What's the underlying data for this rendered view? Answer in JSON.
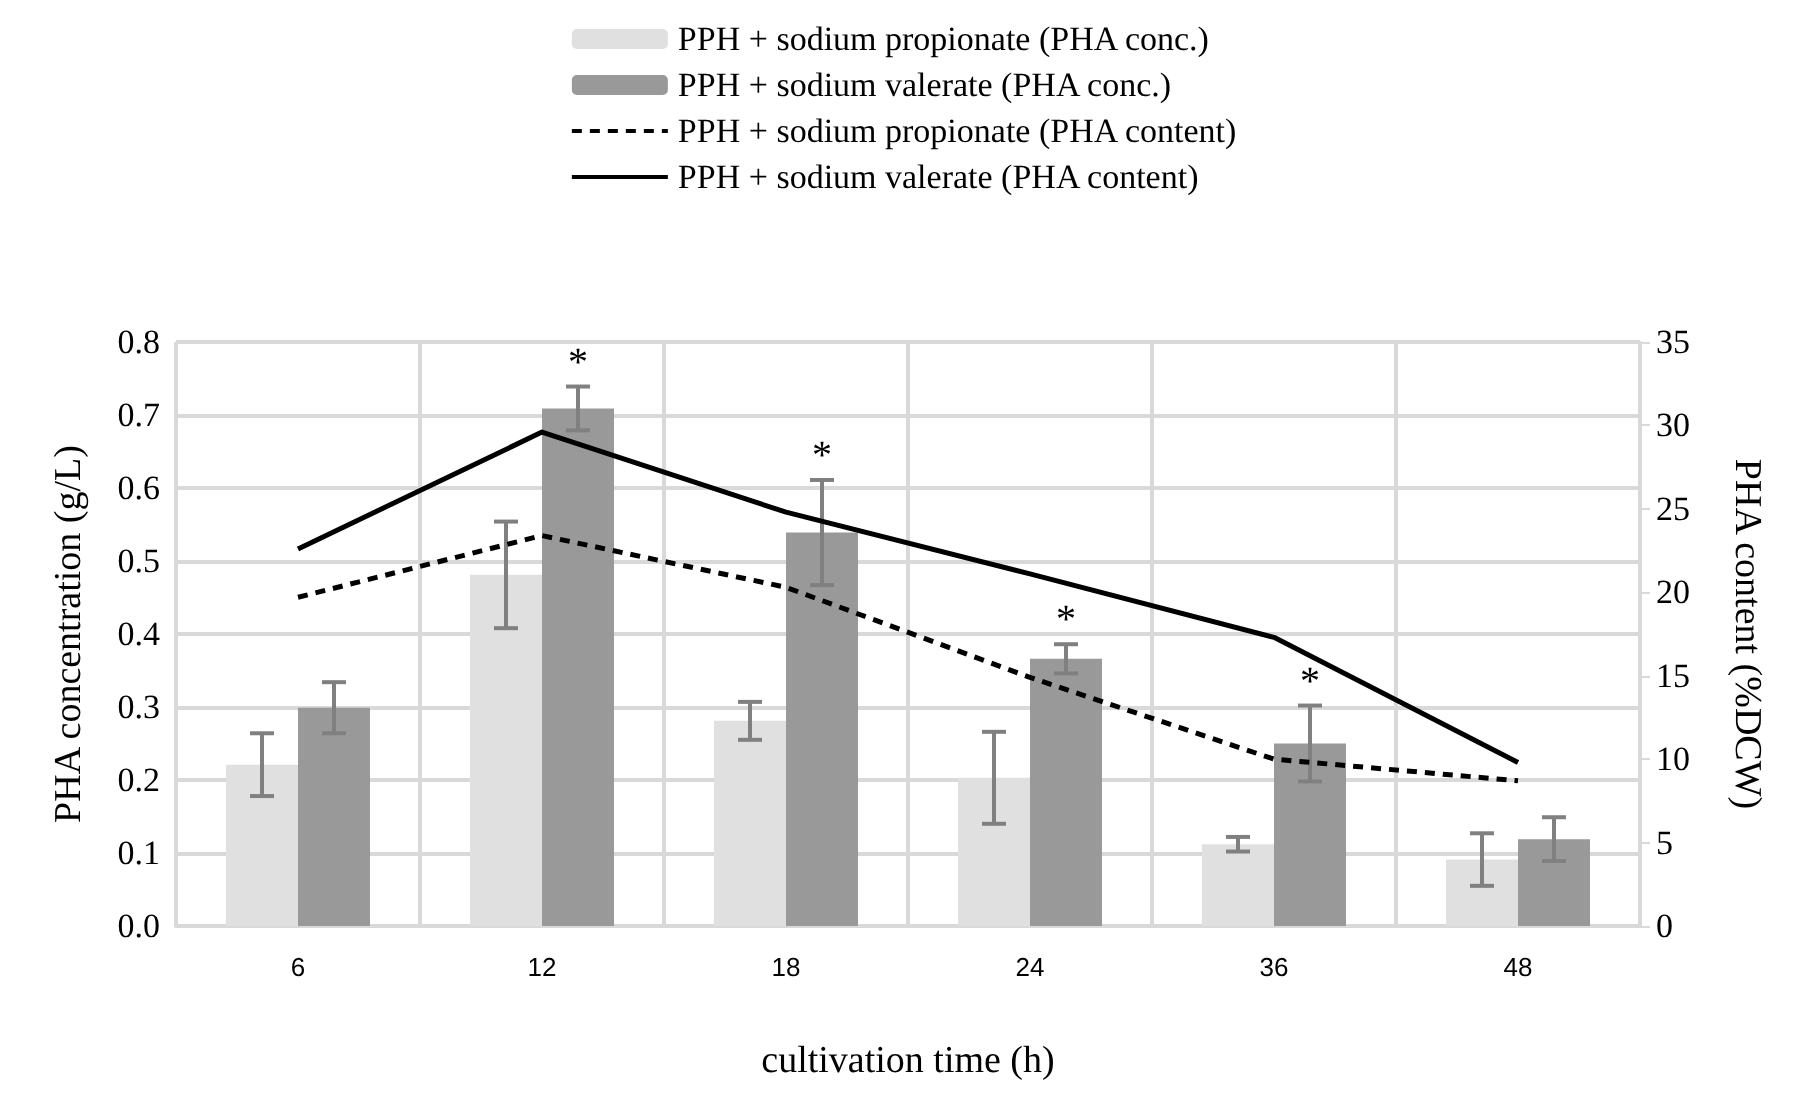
{
  "chart_data": {
    "type": "bar",
    "xlabel": "cultivation time (h)",
    "ylabel": "PHA concentration (g/L)",
    "y2label": "PHA content (%DCW)",
    "categories": [
      "6",
      "12",
      "18",
      "24",
      "36",
      "48"
    ],
    "series": [
      {
        "name": "PPH + sodium propionate (PHA conc.)",
        "color": "#e0e0e0",
        "values": [
          0.221,
          0.481,
          0.281,
          0.203,
          0.112,
          0.091
        ],
        "errors": [
          0.043,
          0.073,
          0.026,
          0.063,
          0.01,
          0.036
        ]
      },
      {
        "name": "PPH + sodium valerate (PHA conc.)",
        "color": "#999999",
        "values": [
          0.299,
          0.709,
          0.539,
          0.366,
          0.25,
          0.119
        ],
        "errors": [
          0.035,
          0.03,
          0.072,
          0.02,
          0.052,
          0.03
        ]
      },
      {
        "name": "PPH + sodium propionate (PHA content)",
        "type": "line",
        "axis": "y2",
        "color": "#000000",
        "line_style": "dashed",
        "values": [
          19.7,
          23.4,
          20.3,
          14.9,
          10.0,
          8.7
        ]
      },
      {
        "name": "PPH + sodium valerate (PHA content)",
        "type": "line",
        "axis": "y2",
        "color": "#000000",
        "line_style": "solid",
        "values": [
          22.6,
          29.6,
          24.8,
          21.1,
          17.3,
          9.8
        ]
      }
    ],
    "annotations": [
      {
        "text": "*",
        "x": "12",
        "y": 0.709
      },
      {
        "text": "*",
        "x": "18",
        "y": 0.539
      },
      {
        "text": "*",
        "x": "24",
        "y": 0.366
      },
      {
        "text": "*",
        "x": "36",
        "y": 0.25
      }
    ],
    "ylim": [
      0,
      0.8
    ],
    "yticks": [
      {
        "value": 0,
        "label": "0.0"
      },
      {
        "value": 0.1,
        "label": "0.1"
      },
      {
        "value": 0.2,
        "label": "0.2"
      },
      {
        "value": 0.3,
        "label": "0.3"
      },
      {
        "value": 0.4,
        "label": "0.4"
      },
      {
        "value": 0.5,
        "label": "0.5"
      },
      {
        "value": 0.6,
        "label": "0.6"
      },
      {
        "value": 0.7,
        "label": "0.7"
      },
      {
        "value": 0.8,
        "label": "0.8"
      }
    ],
    "y2lim": [
      0,
      35
    ],
    "y2ticks": [
      0,
      5,
      10,
      15,
      20,
      25,
      30,
      35
    ],
    "grid": true,
    "legend": "top",
    "marker": "none"
  }
}
